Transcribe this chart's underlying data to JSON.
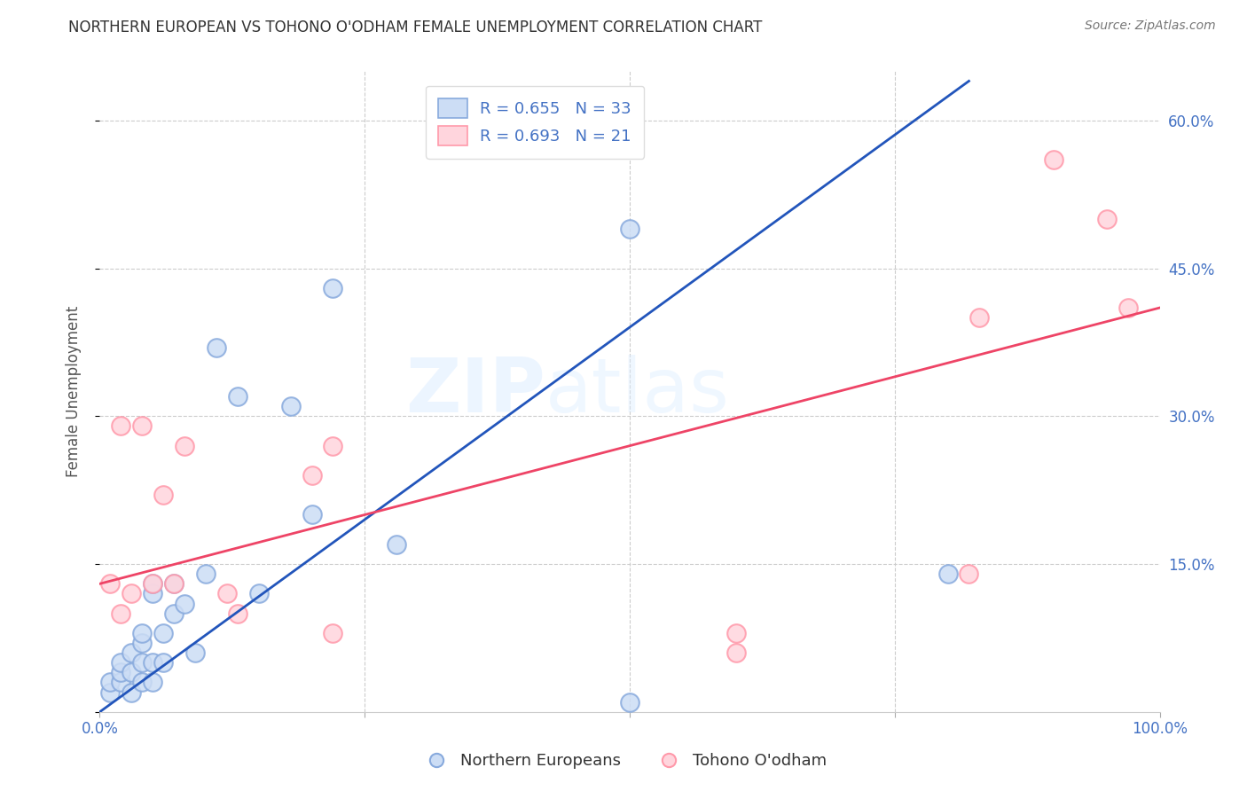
{
  "title": "NORTHERN EUROPEAN VS TOHONO O'ODHAM FEMALE UNEMPLOYMENT CORRELATION CHART",
  "source": "Source: ZipAtlas.com",
  "ylabel": "Female Unemployment",
  "xlim": [
    0,
    1.0
  ],
  "ylim": [
    0,
    0.65
  ],
  "x_ticks": [
    0.0,
    0.25,
    0.5,
    0.75,
    1.0
  ],
  "x_tick_labels": [
    "0.0%",
    "",
    "",
    "",
    "100.0%"
  ],
  "y_ticks": [
    0.0,
    0.15,
    0.3,
    0.45,
    0.6
  ],
  "y_tick_labels_right": [
    "",
    "15.0%",
    "30.0%",
    "45.0%",
    "60.0%"
  ],
  "blue_color": "#88AADD",
  "pink_color": "#FF99AA",
  "blue_line_color": "#2255BB",
  "pink_line_color": "#EE4466",
  "legend_R_blue": "R = 0.655",
  "legend_N_blue": "N = 33",
  "legend_R_pink": "R = 0.693",
  "legend_N_pink": "N = 21",
  "watermark_zip": "ZIP",
  "watermark_atlas": "atlas",
  "blue_scatter_x": [
    0.01,
    0.01,
    0.02,
    0.02,
    0.02,
    0.03,
    0.03,
    0.03,
    0.04,
    0.04,
    0.04,
    0.04,
    0.05,
    0.05,
    0.05,
    0.05,
    0.06,
    0.06,
    0.07,
    0.07,
    0.08,
    0.09,
    0.1,
    0.11,
    0.13,
    0.15,
    0.18,
    0.2,
    0.22,
    0.28,
    0.5,
    0.5,
    0.8
  ],
  "blue_scatter_y": [
    0.02,
    0.03,
    0.03,
    0.04,
    0.05,
    0.02,
    0.04,
    0.06,
    0.03,
    0.05,
    0.07,
    0.08,
    0.03,
    0.05,
    0.12,
    0.13,
    0.05,
    0.08,
    0.1,
    0.13,
    0.11,
    0.06,
    0.14,
    0.37,
    0.32,
    0.12,
    0.31,
    0.2,
    0.43,
    0.17,
    0.49,
    0.01,
    0.14
  ],
  "pink_scatter_x": [
    0.01,
    0.02,
    0.02,
    0.03,
    0.04,
    0.05,
    0.06,
    0.07,
    0.08,
    0.12,
    0.13,
    0.2,
    0.22,
    0.6,
    0.6,
    0.82,
    0.83,
    0.9,
    0.95,
    0.97,
    0.22
  ],
  "pink_scatter_y": [
    0.13,
    0.1,
    0.29,
    0.12,
    0.29,
    0.13,
    0.22,
    0.13,
    0.27,
    0.12,
    0.1,
    0.24,
    0.08,
    0.06,
    0.08,
    0.14,
    0.4,
    0.56,
    0.5,
    0.41,
    0.27
  ],
  "blue_line_x0": 0.0,
  "blue_line_x1": 0.82,
  "blue_line_y0": 0.0,
  "blue_line_y1": 0.64,
  "pink_line_x0": 0.0,
  "pink_line_x1": 1.0,
  "pink_line_y0": 0.13,
  "pink_line_y1": 0.41,
  "grid_color": "#CCCCCC",
  "tick_color": "#4472C4",
  "background_color": "#FFFFFF",
  "title_fontsize": 12,
  "tick_fontsize": 12
}
